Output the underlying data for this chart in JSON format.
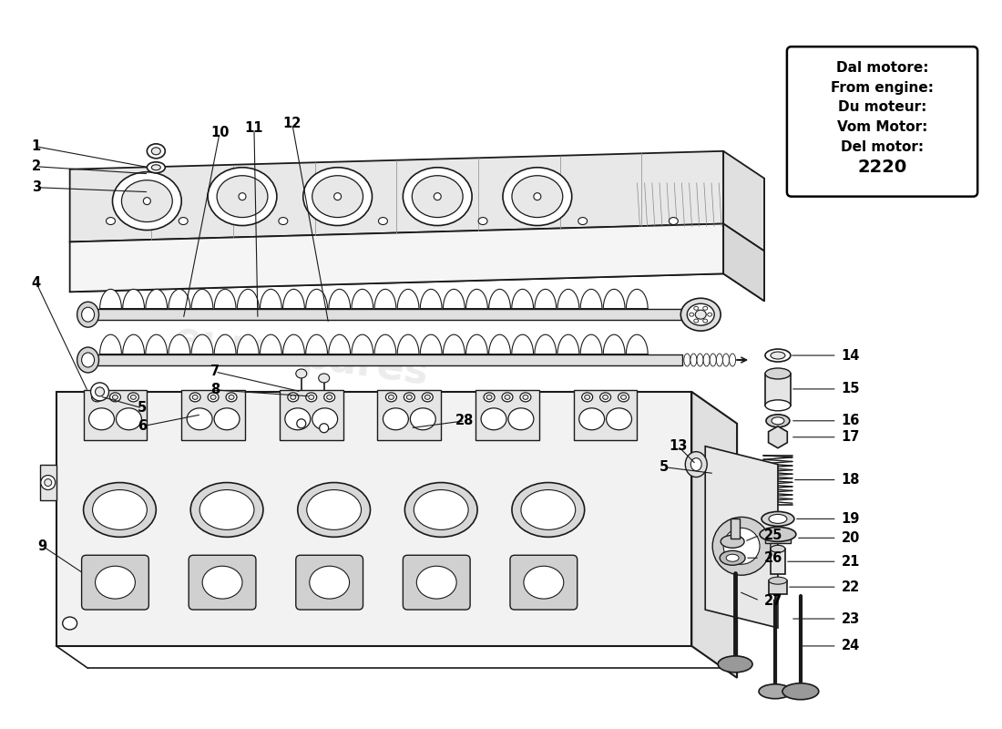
{
  "background_color": "#ffffff",
  "line_color": "#1a1a1a",
  "light_gray": "#e8e8e8",
  "mid_gray": "#cccccc",
  "dark_gray": "#aaaaaa",
  "info_box": {
    "lines": [
      "Dal motore:",
      "From engine:",
      "Du moteur:",
      "Vom Motor:",
      "Del motor:",
      "2220"
    ],
    "bold_last": true
  },
  "watermark": "eurospares",
  "label_fs": 10.5
}
